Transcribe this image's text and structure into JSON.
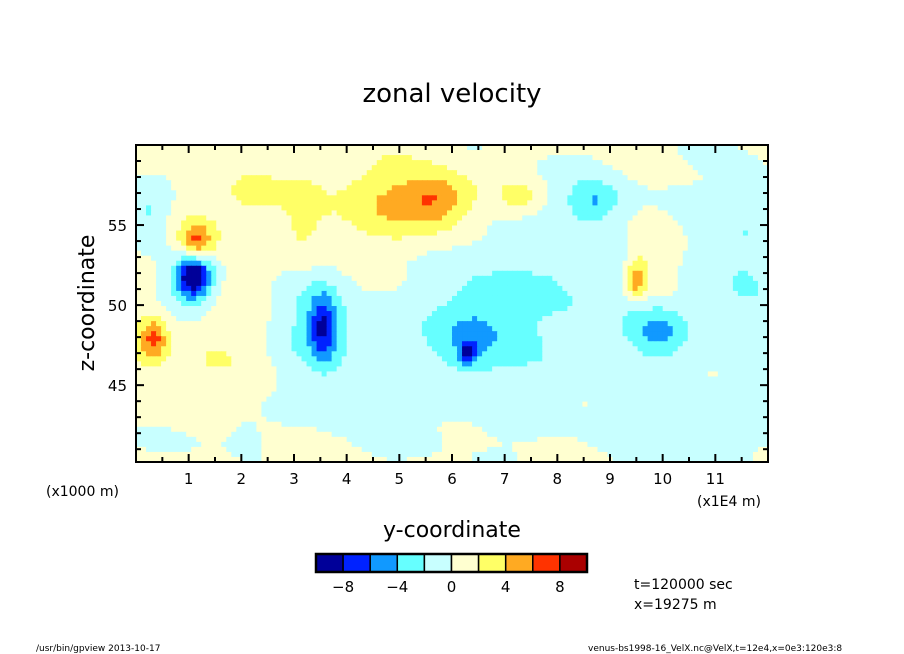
{
  "chart_data": {
    "type": "heatmap",
    "title": "zonal velocity",
    "xlabel": "y-coordinate",
    "ylabel": "z-coordinate",
    "x_unit_label": "(x1E4 m)",
    "y_unit_label": "(x1000 m)",
    "xlim": [
      0,
      12
    ],
    "ylim": [
      40.2,
      60
    ],
    "x_ticks": [
      1,
      2,
      3,
      4,
      5,
      6,
      7,
      8,
      9,
      10,
      11
    ],
    "x_tick_labels": [
      "1",
      "2",
      "3",
      "4",
      "5",
      "6",
      "7",
      "8",
      "9",
      "10",
      "11"
    ],
    "y_ticks": [
      45,
      50,
      55
    ],
    "y_tick_labels": [
      "45",
      "50",
      "55"
    ],
    "levels": [
      -8,
      -6,
      -4,
      -2,
      0,
      2,
      4,
      6,
      8
    ],
    "colorbar_labels": [
      {
        "value": -8,
        "text": "−8"
      },
      {
        "value": -4,
        "text": "−4"
      },
      {
        "value": 0,
        "text": "0"
      },
      {
        "value": 4,
        "text": "4"
      },
      {
        "value": 8,
        "text": "8"
      }
    ],
    "colors": [
      "#000099",
      "#0022ff",
      "#1199ff",
      "#66ffff",
      "#c8ffff",
      "#ffffd0",
      "#ffff66",
      "#ffaa22",
      "#ff3300",
      "#aa0000"
    ],
    "background_value": 0.8,
    "features_approx": [
      {
        "y": 1.1,
        "z": 51.8,
        "amp": -10,
        "sy": 0.22,
        "sz": 0.9
      },
      {
        "y": 1.0,
        "z": 51.5,
        "amp": -3,
        "sy": 0.45,
        "sz": 1.6
      },
      {
        "y": 1.15,
        "z": 53.9,
        "amp": 5,
        "sy": 0.2,
        "sz": 0.8
      },
      {
        "y": 1.1,
        "z": 54.0,
        "amp": 2,
        "sy": 0.4,
        "sz": 1.5
      },
      {
        "y": 5.7,
        "z": 56.6,
        "amp": 4,
        "sy": 0.45,
        "sz": 1.1
      },
      {
        "y": 5.5,
        "z": 56.0,
        "amp": 2.5,
        "sy": 1.1,
        "sz": 2.0
      },
      {
        "y": 4.6,
        "z": 56.8,
        "amp": 1.5,
        "sy": 0.6,
        "sz": 1.5
      },
      {
        "y": 3.55,
        "z": 48.6,
        "amp": -6,
        "sy": 0.18,
        "sz": 1.4
      },
      {
        "y": 3.4,
        "z": 49.0,
        "amp": -3,
        "sy": 0.55,
        "sz": 2.2
      },
      {
        "y": 6.3,
        "z": 47.0,
        "amp": -6.5,
        "sy": 0.12,
        "sz": 0.5
      },
      {
        "y": 6.4,
        "z": 48.2,
        "amp": -3,
        "sy": 0.5,
        "sz": 1.6
      },
      {
        "y": 8.7,
        "z": 56.5,
        "amp": -3.5,
        "sy": 0.35,
        "sz": 0.9
      },
      {
        "y": 0.25,
        "z": 55.8,
        "amp": -3.5,
        "sy": 0.3,
        "sz": 1.5
      },
      {
        "y": 9.9,
        "z": 48.5,
        "amp": -3.5,
        "sy": 0.4,
        "sz": 1.2
      },
      {
        "y": 9.9,
        "z": 52.5,
        "amp": 3,
        "sy": 0.35,
        "sz": 2.0
      },
      {
        "y": 9.5,
        "z": 51.6,
        "amp": 5,
        "sy": 0.12,
        "sz": 0.9
      },
      {
        "y": 7.3,
        "z": 56.8,
        "amp": 2.5,
        "sy": 0.3,
        "sz": 0.8
      },
      {
        "y": 2.2,
        "z": 57.0,
        "amp": 2.2,
        "sy": 0.35,
        "sz": 0.8
      },
      {
        "y": 0.35,
        "z": 48.0,
        "amp": 4,
        "sy": 0.15,
        "sz": 0.9
      },
      {
        "y": 0.2,
        "z": 47.5,
        "amp": 2,
        "sy": 0.3,
        "sz": 1.2
      },
      {
        "y": 3.2,
        "z": 55.5,
        "amp": 2.2,
        "sy": 0.3,
        "sz": 2.0
      },
      {
        "y": 8.5,
        "z": 50.5,
        "amp": -2.2,
        "sy": 2.5,
        "sz": 6.0
      },
      {
        "y": 4.5,
        "z": 45.0,
        "amp": -1.6,
        "sy": 1.5,
        "sz": 3.0
      },
      {
        "y": 10.8,
        "z": 42.5,
        "amp": -1.0,
        "sy": 1.2,
        "sz": 2.0
      },
      {
        "y": 6.8,
        "z": 51.5,
        "amp": -1.2,
        "sy": 0.8,
        "sz": 4.0
      },
      {
        "y": 11.6,
        "z": 53.0,
        "amp": -2.2,
        "sy": 0.4,
        "sz": 4.0
      },
      {
        "y": 1.5,
        "z": 46.5,
        "amp": 1.0,
        "sy": 1.0,
        "sz": 3.0
      },
      {
        "y": 2.0,
        "z": 42.0,
        "amp": -1.2,
        "sy": 0.3,
        "sz": 1.0
      },
      {
        "y": 0.8,
        "z": 41.5,
        "amp": -1.2,
        "sy": 0.6,
        "sz": 0.8
      }
    ],
    "annotations": [
      "t=120000 sec",
      "x=19275 m"
    ]
  },
  "footer": {
    "left": "/usr/bin/gpview   2013-10-17",
    "right": "venus-bs1998-16_VelX.nc@VelX,t=12e4,x=0e3:120e3:8"
  }
}
